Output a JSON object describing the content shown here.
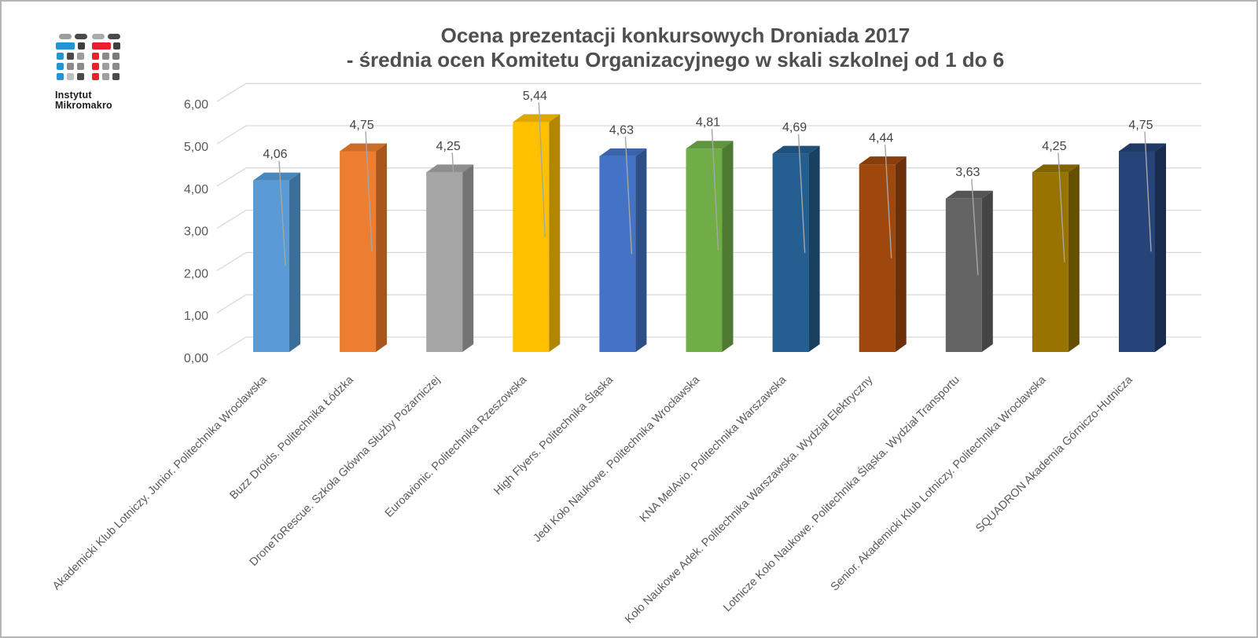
{
  "page": {
    "background": "#FFFFFF",
    "border_color": "#B5B5B5"
  },
  "logo": {
    "line1": "Instytut",
    "line2": "Mikromakro",
    "icon": "instytut-mikromakro-logo",
    "blue": "#2196D3",
    "red": "#E8222D",
    "dark_gray": "#4A4A4A",
    "mid_gray": "#8A8A8A",
    "light_gray": "#ABABAB"
  },
  "chart_data": {
    "type": "bar",
    "style": "3d-column",
    "title_line1": "Ocena prezentacji konkursowych Droniada 2017",
    "title_line2": "- średnia ocen Komitetu Organizacyjnego w skali szkolnej od 1 do 6",
    "title": "Ocena prezentacji konkursowych Droniada 2017 - średnia ocen Komitetu Organizacyjnego w skali szkolnej od 1 do 6",
    "xlabel": "",
    "ylabel": "",
    "legend": "none",
    "grid": true,
    "ylim": [
      0,
      6
    ],
    "yticks": [
      0,
      1,
      2,
      3,
      4,
      5,
      6
    ],
    "ytick_labels": [
      "0,00",
      "1,00",
      "2,00",
      "3,00",
      "4,00",
      "5,00",
      "6,00"
    ],
    "categories": [
      "Akademicki Klub Lotniczy. Junior. Politechnika Wrocławska",
      "Buzz Droids. Politechnika Łódzka",
      "DroneToRescue. Szkoła Główna Służby Pożarniczej",
      "Euroavionic. Politechnika Rzeszowska",
      "High Flyers. Politechnika Śląska",
      "Jedi Koło Naukowe. Politechnika Wrocławska",
      "KNA MelAvio. Politechnika Warszawska",
      "Koło Naukowe Adek. Politechnika Warszawska. Wydział Elektryczny",
      "Lotnicze Koło Naukowe. Politechnika Śląska. Wydział Transportu",
      "Senior. Akademicki Klub Lotniczy. Politechnika Wrocławska",
      "SQUADRON Akademia Górniczo-Hutnicza"
    ],
    "values": [
      4.06,
      4.75,
      4.25,
      5.44,
      4.63,
      4.81,
      4.69,
      4.44,
      3.63,
      4.25,
      4.75
    ],
    "value_labels": [
      "4,06",
      "4,75",
      "4,25",
      "5,44",
      "4,63",
      "4,81",
      "4,69",
      "4,44",
      "3,63",
      "4,25",
      "4,75"
    ],
    "bar_colors": [
      {
        "front": "#5B9BD5",
        "top": "#4A87BC",
        "side": "#3C6E9A"
      },
      {
        "front": "#ED7D31",
        "top": "#CE6D28",
        "side": "#A9561E"
      },
      {
        "front": "#A5A5A5",
        "top": "#8E8E8E",
        "side": "#747474"
      },
      {
        "front": "#FFC000",
        "top": "#DDA600",
        "side": "#B28600"
      },
      {
        "front": "#4472C4",
        "top": "#3A63AB",
        "side": "#2E4E86"
      },
      {
        "front": "#70AD47",
        "top": "#61953D",
        "side": "#4E7A31"
      },
      {
        "front": "#255E91",
        "top": "#1F517D",
        "side": "#1A4061"
      },
      {
        "front": "#9E480E",
        "top": "#873D0C",
        "side": "#6B300A"
      },
      {
        "front": "#636363",
        "top": "#555555",
        "side": "#454545"
      },
      {
        "front": "#997300",
        "top": "#836200",
        "side": "#665000"
      },
      {
        "front": "#264478",
        "top": "#203A67",
        "side": "#192C4E"
      }
    ]
  },
  "colors": {
    "gridline": "#D9D9D9",
    "axis_text": "#595959",
    "data_label_text": "#444444",
    "leader_line": "#A6A6A6",
    "title_text": "#4F4F4F"
  }
}
